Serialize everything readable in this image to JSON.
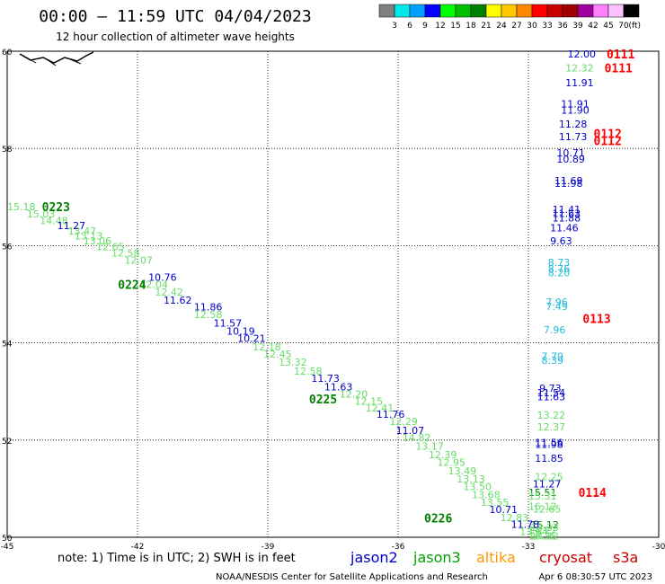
{
  "header": {
    "title": "00:00 – 11:59 UTC 04/04/2023",
    "subtitle": "12 hour collection of altimeter wave heights"
  },
  "colorbar": {
    "labels": [
      "3",
      "6",
      "9",
      "12",
      "15",
      "18",
      "21",
      "24",
      "27",
      "30",
      "33",
      "36",
      "39",
      "42",
      "45",
      "70"
    ],
    "unit": "(ft)",
    "colors": [
      "#808080",
      "#00e8e8",
      "#00a0ff",
      "#0000ff",
      "#00ff00",
      "#00c000",
      "#008000",
      "#ffff00",
      "#ffc800",
      "#ff8800",
      "#ff0000",
      "#c80000",
      "#a00000",
      "#a000a0",
      "#ff80ff",
      "#ffc0ff",
      "#000000"
    ]
  },
  "footer": {
    "note": "note:  1) Time is in UTC;  2) SWH is in feet",
    "credit": "NOAA/NESDIS Center for Satellite Applications and Research",
    "timestamp": "Apr  6 08:30:57 UTC 2023",
    "satellites": [
      {
        "name": "jason2",
        "color": "#0000cc"
      },
      {
        "name": "jason3",
        "color": "#00a000"
      },
      {
        "name": "altika",
        "color": "#ff9900"
      },
      {
        "name": "cryosat",
        "color": "#cc0000"
      },
      {
        "name": "s3a",
        "color": "#cc0000"
      }
    ]
  },
  "colors": {
    "blue": "#0000cc",
    "lgreen": "#66dd66",
    "dgreen": "#008000",
    "cyan": "#22bbdd",
    "red": "#ff0000"
  },
  "chart_data": {
    "type": "scatter",
    "xlim": [
      -45,
      -30
    ],
    "ylim": [
      50,
      60
    ],
    "x_ticks": [
      "-45",
      "-42",
      "-39",
      "-36",
      "-33",
      "-30"
    ],
    "y_ticks": [
      "50",
      "52",
      "54",
      "56",
      "58",
      "60"
    ],
    "grid": true,
    "pass_labels": [
      {
        "text": "0111",
        "lon": -31.2,
        "lat": 59.94,
        "color": "red"
      },
      {
        "text": "0111",
        "lon": -31.25,
        "lat": 59.66,
        "color": "red"
      },
      {
        "text": "0112",
        "lon": -31.5,
        "lat": 58.31,
        "color": "red"
      },
      {
        "text": "0112",
        "lon": -31.5,
        "lat": 58.16,
        "color": "red"
      },
      {
        "text": "0113",
        "lon": -31.75,
        "lat": 54.5,
        "color": "red"
      },
      {
        "text": "0114",
        "lon": -31.85,
        "lat": 50.92,
        "color": "red"
      },
      {
        "text": "0223",
        "lon": -44.2,
        "lat": 56.8,
        "color": "dgreen"
      },
      {
        "text": "0224",
        "lon": -42.45,
        "lat": 55.2,
        "color": "dgreen"
      },
      {
        "text": "0225",
        "lon": -38.05,
        "lat": 52.85,
        "color": "dgreen"
      },
      {
        "text": "0226",
        "lon": -35.4,
        "lat": 50.4,
        "color": "dgreen"
      }
    ],
    "points": [
      {
        "lon": -32.1,
        "lat": 59.94,
        "v": "12.00",
        "c": "blue"
      },
      {
        "lon": -32.15,
        "lat": 59.66,
        "v": "12.32",
        "c": "lgreen"
      },
      {
        "lon": -32.15,
        "lat": 59.35,
        "v": "11.91",
        "c": "blue"
      },
      {
        "lon": -32.25,
        "lat": 58.92,
        "v": "11.91",
        "c": "blue"
      },
      {
        "lon": -32.25,
        "lat": 58.79,
        "v": "11.90",
        "c": "blue"
      },
      {
        "lon": -32.3,
        "lat": 58.5,
        "v": "11.28",
        "c": "blue"
      },
      {
        "lon": -32.3,
        "lat": 58.24,
        "v": "11.73",
        "c": "blue"
      },
      {
        "lon": -32.35,
        "lat": 57.91,
        "v": "10.71",
        "c": "blue"
      },
      {
        "lon": -32.35,
        "lat": 57.78,
        "v": "10.89",
        "c": "blue"
      },
      {
        "lon": -32.4,
        "lat": 57.34,
        "v": "11.69",
        "c": "blue"
      },
      {
        "lon": -32.4,
        "lat": 57.28,
        "v": "11.98",
        "c": "blue"
      },
      {
        "lon": -32.45,
        "lat": 56.75,
        "v": "11.41",
        "c": "blue"
      },
      {
        "lon": -32.45,
        "lat": 56.66,
        "v": "11.63",
        "c": "blue"
      },
      {
        "lon": -32.45,
        "lat": 56.57,
        "v": "11.88",
        "c": "blue"
      },
      {
        "lon": -32.5,
        "lat": 56.37,
        "v": "11.46",
        "c": "blue"
      },
      {
        "lon": -32.5,
        "lat": 56.1,
        "v": "9.63",
        "c": "blue"
      },
      {
        "lon": -32.55,
        "lat": 55.66,
        "v": "8.73",
        "c": "cyan"
      },
      {
        "lon": -32.55,
        "lat": 55.53,
        "v": "8.76",
        "c": "cyan"
      },
      {
        "lon": -32.55,
        "lat": 55.44,
        "v": "8.20",
        "c": "cyan"
      },
      {
        "lon": -32.6,
        "lat": 54.84,
        "v": "7.96",
        "c": "cyan"
      },
      {
        "lon": -32.6,
        "lat": 54.75,
        "v": "7.49",
        "c": "cyan"
      },
      {
        "lon": -32.65,
        "lat": 54.27,
        "v": "7.96",
        "c": "cyan"
      },
      {
        "lon": -32.7,
        "lat": 53.72,
        "v": "7.79",
        "c": "cyan"
      },
      {
        "lon": -32.7,
        "lat": 53.64,
        "v": "8.39",
        "c": "cyan"
      },
      {
        "lon": -32.75,
        "lat": 53.07,
        "v": "9.73",
        "c": "blue"
      },
      {
        "lon": -32.8,
        "lat": 52.98,
        "v": "11.54",
        "c": "blue"
      },
      {
        "lon": -32.8,
        "lat": 52.89,
        "v": "11.63",
        "c": "blue"
      },
      {
        "lon": -32.8,
        "lat": 52.51,
        "v": "13.22",
        "c": "lgreen"
      },
      {
        "lon": -32.8,
        "lat": 52.27,
        "v": "12.37",
        "c": "lgreen"
      },
      {
        "lon": -32.85,
        "lat": 51.95,
        "v": "11.56",
        "c": "blue"
      },
      {
        "lon": -32.85,
        "lat": 51.91,
        "v": "11.98",
        "c": "blue"
      },
      {
        "lon": -32.85,
        "lat": 51.63,
        "v": "11.85",
        "c": "blue"
      },
      {
        "lon": -32.85,
        "lat": 51.25,
        "v": "12.25",
        "c": "lgreen"
      },
      {
        "lon": -32.9,
        "lat": 51.1,
        "v": "11.27",
        "c": "blue"
      },
      {
        "lon": -32.9,
        "lat": 50.58,
        "v": "12.65",
        "c": "lgreen"
      },
      {
        "lon": -32.95,
        "lat": 50.26,
        "v": "15.12",
        "c": "dgreen"
      },
      {
        "lon": -32.95,
        "lat": 50.2,
        "v": "14.33",
        "c": "lgreen"
      },
      {
        "lon": -32.95,
        "lat": 50.03,
        "v": "14.32",
        "c": "lgreen"
      },
      {
        "lon": -33.0,
        "lat": 50.92,
        "v": "15.51",
        "c": "dgreen"
      },
      {
        "lon": -33.0,
        "lat": 50.85,
        "v": "15.31",
        "c": "lgreen"
      },
      {
        "lon": -33.0,
        "lat": 50.64,
        "v": "16.12",
        "c": "lgreen"
      },
      {
        "lon": -33.0,
        "lat": 50.15,
        "v": "14.27",
        "c": "lgreen"
      },
      {
        "lon": -33.0,
        "lat": 50.03,
        "v": "16.35",
        "c": "lgreen"
      },
      {
        "lon": -45.0,
        "lat": 56.8,
        "v": "15.18",
        "c": "lgreen"
      },
      {
        "lon": -44.55,
        "lat": 56.65,
        "v": "15.03",
        "c": "lgreen"
      },
      {
        "lon": -44.25,
        "lat": 56.52,
        "v": "14.48",
        "c": "lgreen"
      },
      {
        "lon": -43.85,
        "lat": 56.41,
        "v": "11.27",
        "c": "blue"
      },
      {
        "lon": -43.6,
        "lat": 56.3,
        "v": "13.47",
        "c": "lgreen"
      },
      {
        "lon": -43.45,
        "lat": 56.2,
        "v": "13.13",
        "c": "lgreen"
      },
      {
        "lon": -43.25,
        "lat": 56.1,
        "v": "13.06",
        "c": "lgreen"
      },
      {
        "lon": -42.95,
        "lat": 55.98,
        "v": "12.65",
        "c": "lgreen"
      },
      {
        "lon": -42.6,
        "lat": 55.85,
        "v": "12.58",
        "c": "lgreen"
      },
      {
        "lon": -42.3,
        "lat": 55.7,
        "v": "12.07",
        "c": "lgreen"
      },
      {
        "lon": -41.75,
        "lat": 55.35,
        "v": "10.76",
        "c": "blue"
      },
      {
        "lon": -41.95,
        "lat": 55.2,
        "v": "12.04",
        "c": "lgreen"
      },
      {
        "lon": -41.6,
        "lat": 55.05,
        "v": "12.42",
        "c": "lgreen"
      },
      {
        "lon": -41.4,
        "lat": 54.88,
        "v": "11.62",
        "c": "blue"
      },
      {
        "lon": -40.7,
        "lat": 54.74,
        "v": "11.86",
        "c": "blue"
      },
      {
        "lon": -40.7,
        "lat": 54.58,
        "v": "12.58",
        "c": "lgreen"
      },
      {
        "lon": -40.25,
        "lat": 54.41,
        "v": "11.57",
        "c": "blue"
      },
      {
        "lon": -39.95,
        "lat": 54.24,
        "v": "10.19",
        "c": "blue"
      },
      {
        "lon": -39.7,
        "lat": 54.09,
        "v": "10.21",
        "c": "blue"
      },
      {
        "lon": -39.35,
        "lat": 53.92,
        "v": "12.18",
        "c": "lgreen"
      },
      {
        "lon": -39.1,
        "lat": 53.77,
        "v": "12.45",
        "c": "lgreen"
      },
      {
        "lon": -38.75,
        "lat": 53.6,
        "v": "13.32",
        "c": "lgreen"
      },
      {
        "lon": -38.4,
        "lat": 53.42,
        "v": "12.58",
        "c": "lgreen"
      },
      {
        "lon": -38.0,
        "lat": 53.27,
        "v": "11.73",
        "c": "blue"
      },
      {
        "lon": -37.7,
        "lat": 53.1,
        "v": "11.63",
        "c": "blue"
      },
      {
        "lon": -37.35,
        "lat": 52.95,
        "v": "12.20",
        "c": "lgreen"
      },
      {
        "lon": -37.0,
        "lat": 52.8,
        "v": "12.15",
        "c": "lgreen"
      },
      {
        "lon": -36.75,
        "lat": 52.66,
        "v": "12.41",
        "c": "lgreen"
      },
      {
        "lon": -36.5,
        "lat": 52.53,
        "v": "11.76",
        "c": "blue"
      },
      {
        "lon": -36.2,
        "lat": 52.38,
        "v": "12.29",
        "c": "lgreen"
      },
      {
        "lon": -36.05,
        "lat": 52.2,
        "v": "11.07",
        "c": "blue"
      },
      {
        "lon": -35.9,
        "lat": 52.05,
        "v": "14.82",
        "c": "lgreen"
      },
      {
        "lon": -35.6,
        "lat": 51.88,
        "v": "13.17",
        "c": "lgreen"
      },
      {
        "lon": -35.3,
        "lat": 51.7,
        "v": "12.39",
        "c": "lgreen"
      },
      {
        "lon": -35.1,
        "lat": 51.54,
        "v": "12.95",
        "c": "lgreen"
      },
      {
        "lon": -34.85,
        "lat": 51.37,
        "v": "13.49",
        "c": "lgreen"
      },
      {
        "lon": -34.65,
        "lat": 51.2,
        "v": "13.13",
        "c": "lgreen"
      },
      {
        "lon": -34.5,
        "lat": 51.04,
        "v": "13.50",
        "c": "lgreen"
      },
      {
        "lon": -34.3,
        "lat": 50.88,
        "v": "13.68",
        "c": "lgreen"
      },
      {
        "lon": -34.1,
        "lat": 50.72,
        "v": "13.55",
        "c": "lgreen"
      },
      {
        "lon": -33.9,
        "lat": 50.57,
        "v": "10.71",
        "c": "blue"
      },
      {
        "lon": -33.65,
        "lat": 50.41,
        "v": "12.83",
        "c": "lgreen"
      },
      {
        "lon": -33.4,
        "lat": 50.27,
        "v": "11.78",
        "c": "blue"
      },
      {
        "lon": -33.2,
        "lat": 50.12,
        "v": "13.64",
        "c": "lgreen"
      }
    ]
  }
}
